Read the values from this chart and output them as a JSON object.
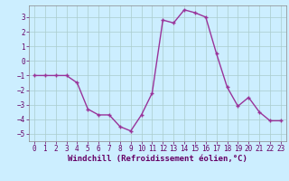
{
  "x": [
    0,
    1,
    2,
    3,
    4,
    5,
    6,
    7,
    8,
    9,
    10,
    11,
    12,
    13,
    14,
    15,
    16,
    17,
    18,
    19,
    20,
    21,
    22,
    23
  ],
  "y": [
    -1.0,
    -1.0,
    -1.0,
    -1.0,
    -1.5,
    -3.3,
    -3.7,
    -3.7,
    -4.5,
    -4.8,
    -3.7,
    -2.2,
    2.8,
    2.6,
    3.5,
    3.3,
    3.0,
    0.5,
    -1.8,
    -3.1,
    -2.5,
    -3.5,
    -4.1,
    -4.1
  ],
  "line_color": "#993399",
  "marker": "+",
  "bg_color": "#cceeff",
  "grid_color": "#aacccc",
  "xlabel": "Windchill (Refroidissement éolien,°C)",
  "ylabel": "",
  "ylim": [
    -5.5,
    3.8
  ],
  "xlim": [
    -0.5,
    23.5
  ],
  "yticks": [
    -5,
    -4,
    -3,
    -2,
    -1,
    0,
    1,
    2,
    3
  ],
  "xticks": [
    0,
    1,
    2,
    3,
    4,
    5,
    6,
    7,
    8,
    9,
    10,
    11,
    12,
    13,
    14,
    15,
    16,
    17,
    18,
    19,
    20,
    21,
    22,
    23
  ],
  "tick_fontsize": 5.5,
  "xlabel_fontsize": 6.5,
  "line_width": 1.0,
  "marker_size": 3.5,
  "spine_color": "#888888"
}
